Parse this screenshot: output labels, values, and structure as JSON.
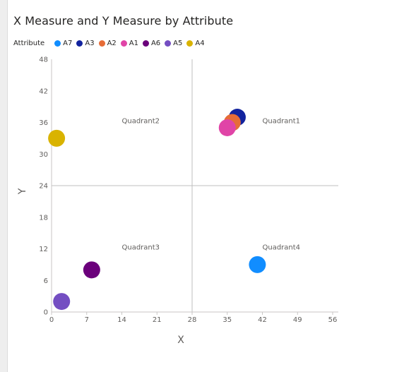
{
  "chart_data": {
    "type": "scatter",
    "title": "X Measure and Y Measure by Attribute",
    "legend_title": "Attribute",
    "legend_position": "top-left",
    "xlabel": "X",
    "ylabel": "Y",
    "xlim": [
      0,
      56
    ],
    "ylim": [
      0,
      48
    ],
    "xticks": [
      "0",
      "7",
      "14",
      "21",
      "28",
      "35",
      "42",
      "49",
      "56"
    ],
    "yticks": [
      "0",
      "6",
      "12",
      "18",
      "24",
      "30",
      "36",
      "42",
      "48"
    ],
    "grid": false,
    "reference_lines": {
      "x": 28,
      "y": 24
    },
    "quadrant_labels": [
      {
        "text": "Quadrant2",
        "x": 14,
        "y": 36
      },
      {
        "text": "Quadrant1",
        "x": 42,
        "y": 36
      },
      {
        "text": "Quadrant3",
        "x": 14,
        "y": 12
      },
      {
        "text": "Quadrant4",
        "x": 42,
        "y": 12
      }
    ],
    "series": [
      {
        "name": "A7",
        "color": "#118DFF",
        "x": 41,
        "y": 9
      },
      {
        "name": "A3",
        "color": "#12239E",
        "x": 37,
        "y": 37
      },
      {
        "name": "A2",
        "color": "#E66C37",
        "x": 36,
        "y": 36
      },
      {
        "name": "A1",
        "color": "#E044A7",
        "x": 35,
        "y": 35
      },
      {
        "name": "A6",
        "color": "#6B007B",
        "x": 8,
        "y": 8
      },
      {
        "name": "A5",
        "color": "#744EC2",
        "x": 2,
        "y": 2
      },
      {
        "name": "A4",
        "color": "#D9B300",
        "x": 1,
        "y": 33
      }
    ]
  }
}
